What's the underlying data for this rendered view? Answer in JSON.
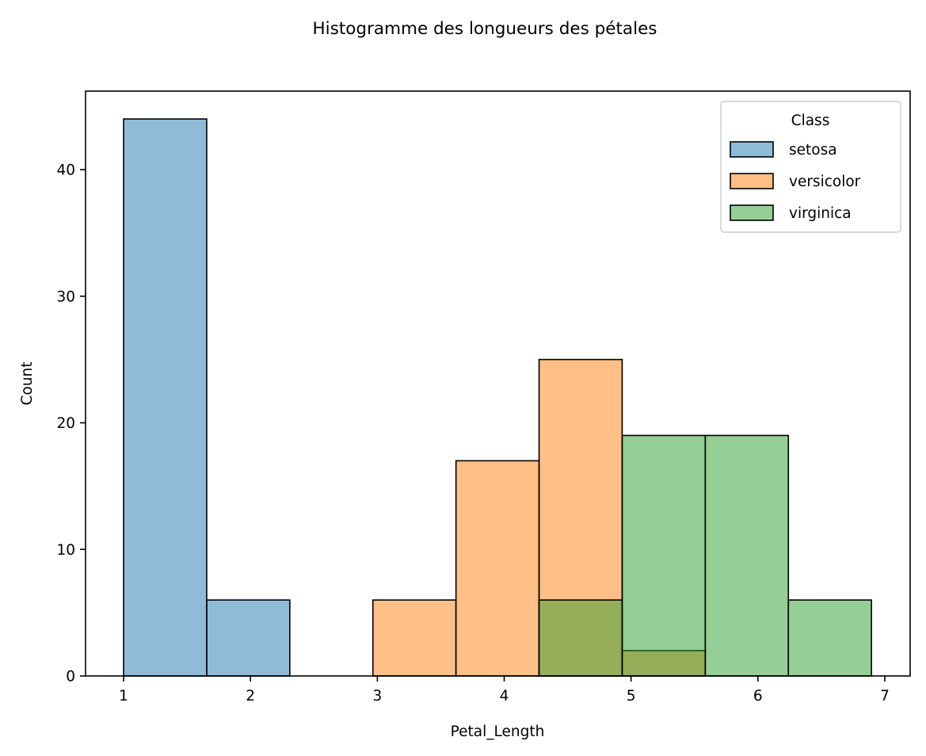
{
  "chart_data": {
    "type": "histogram",
    "title": "Histogramme des longueurs des pétales",
    "xlabel": "Petal_Length",
    "ylabel": "Count",
    "xlim": [
      0.7,
      7.2
    ],
    "ylim": [
      0,
      46.2
    ],
    "xticks": [
      1,
      2,
      3,
      4,
      5,
      6,
      7
    ],
    "yticks": [
      0,
      10,
      20,
      30,
      40
    ],
    "bin_edges": [
      1.0,
      1.655,
      2.31,
      2.965,
      3.62,
      4.275,
      4.93,
      5.585,
      6.24,
      6.895
    ],
    "grid": false,
    "legend": {
      "title": "Class",
      "placement": "top-right"
    },
    "series": [
      {
        "name": "setosa",
        "color": "#1f77b4",
        "counts": [
          44,
          6,
          0,
          0,
          0,
          0,
          0,
          0,
          0
        ]
      },
      {
        "name": "versicolor",
        "color": "#ff7f0e",
        "counts": [
          0,
          0,
          0,
          6,
          17,
          25,
          2,
          0,
          0
        ]
      },
      {
        "name": "virginica",
        "color": "#2ca02c",
        "counts": [
          0,
          0,
          0,
          0,
          0,
          6,
          19,
          19,
          6
        ]
      }
    ]
  }
}
